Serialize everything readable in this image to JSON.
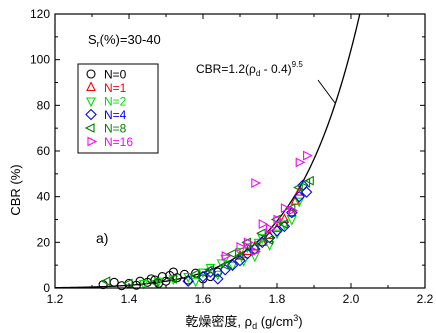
{
  "chart_data": {
    "type": "scatter",
    "title": "",
    "xlabel_main": "乾燥密度, ",
    "xlabel_symbol": "ρ",
    "xlabel_sub": "d",
    "xlabel_unit_open": " (g/cm",
    "xlabel_unit_sup": "3",
    "xlabel_unit_close": ")",
    "ylabel": "CBR (%)",
    "xlim": [
      1.2,
      2.2
    ],
    "ylim": [
      0,
      120
    ],
    "x_ticks": [
      "1.2",
      "1.4",
      "1.6",
      "1.8",
      "2.0",
      "2.2"
    ],
    "y_ticks": [
      "0",
      "20",
      "40",
      "60",
      "80",
      "100",
      "120"
    ],
    "x_tick_values": [
      1.2,
      1.4,
      1.6,
      1.8,
      2.0,
      2.2
    ],
    "y_tick_values": [
      0,
      20,
      40,
      60,
      80,
      100,
      120
    ],
    "grid": false,
    "legend_position": "upper-left",
    "condition_label": {
      "prefix": "S",
      "sub": "r",
      "rest": "(%)=30-40"
    },
    "panel_label": "a)",
    "fit_curve": {
      "a": 1.2,
      "b": 0.4,
      "n": 9.5,
      "label_prefix": "CBR=1.2(",
      "label_rho": "ρ",
      "label_sub": "d",
      "label_mid": " - 0.4)",
      "label_sup": "9.5"
    },
    "series": [
      {
        "name": "N=0",
        "marker": "circle",
        "color": "#000000",
        "points": [
          [
            1.33,
            1.5
          ],
          [
            1.36,
            2.5
          ],
          [
            1.38,
            1.0
          ],
          [
            1.4,
            2.0
          ],
          [
            1.42,
            1.2
          ],
          [
            1.43,
            3.0
          ],
          [
            1.45,
            2.5
          ],
          [
            1.46,
            4.0
          ],
          [
            1.47,
            3.5
          ],
          [
            1.48,
            2.0
          ],
          [
            1.49,
            5.0
          ],
          [
            1.5,
            3.0
          ],
          [
            1.51,
            5.5
          ],
          [
            1.52,
            7.0
          ],
          [
            1.53,
            4.5
          ],
          [
            1.55,
            6.0
          ],
          [
            1.56,
            3.5
          ],
          [
            1.58,
            6.5
          ],
          [
            1.6,
            4.0
          ],
          [
            1.62,
            5.0
          ],
          [
            1.64,
            7.0
          ]
        ]
      },
      {
        "name": "N=1",
        "marker": "triangle-up",
        "color": "#ff0000",
        "points": [
          [
            1.7,
            14
          ],
          [
            1.72,
            16
          ],
          [
            1.74,
            18
          ],
          [
            1.76,
            20
          ],
          [
            1.78,
            23
          ],
          [
            1.8,
            26
          ],
          [
            1.82,
            30
          ],
          [
            1.84,
            33
          ],
          [
            1.85,
            38
          ],
          [
            1.86,
            42
          ]
        ]
      },
      {
        "name": "N=2",
        "marker": "triangle-down",
        "color": "#00dd00",
        "points": [
          [
            1.44,
            2
          ],
          [
            1.48,
            3
          ],
          [
            1.52,
            4
          ],
          [
            1.56,
            5
          ],
          [
            1.58,
            3
          ],
          [
            1.6,
            7
          ],
          [
            1.62,
            9
          ],
          [
            1.64,
            6
          ],
          [
            1.65,
            11
          ],
          [
            1.66,
            13
          ],
          [
            1.68,
            10
          ],
          [
            1.7,
            16
          ],
          [
            1.71,
            12
          ],
          [
            1.72,
            18
          ],
          [
            1.74,
            14
          ],
          [
            1.75,
            20
          ],
          [
            1.76,
            22
          ],
          [
            1.78,
            19
          ],
          [
            1.8,
            24
          ],
          [
            1.82,
            28
          ],
          [
            1.84,
            30
          ],
          [
            1.86,
            38
          ]
        ]
      },
      {
        "name": "N=4",
        "marker": "diamond",
        "color": "#0000ff",
        "points": [
          [
            1.56,
            3
          ],
          [
            1.6,
            5
          ],
          [
            1.62,
            7
          ],
          [
            1.64,
            4
          ],
          [
            1.66,
            8
          ],
          [
            1.68,
            10
          ],
          [
            1.7,
            12
          ],
          [
            1.72,
            15
          ],
          [
            1.74,
            17
          ],
          [
            1.76,
            20
          ],
          [
            1.78,
            22
          ],
          [
            1.8,
            25
          ],
          [
            1.82,
            27
          ],
          [
            1.84,
            33
          ],
          [
            1.86,
            40
          ],
          [
            1.87,
            45
          ],
          [
            1.88,
            42
          ]
        ]
      },
      {
        "name": "N=8",
        "marker": "triangle-left",
        "color": "#008000",
        "points": [
          [
            1.34,
            3
          ],
          [
            1.4,
            2
          ],
          [
            1.47,
            2.5
          ],
          [
            1.52,
            4
          ],
          [
            1.58,
            6
          ],
          [
            1.62,
            8
          ],
          [
            1.66,
            10
          ],
          [
            1.68,
            15
          ],
          [
            1.7,
            14
          ],
          [
            1.72,
            20
          ],
          [
            1.74,
            18
          ],
          [
            1.76,
            24
          ],
          [
            1.78,
            21
          ],
          [
            1.8,
            30
          ],
          [
            1.82,
            28
          ],
          [
            1.84,
            35
          ],
          [
            1.86,
            44
          ],
          [
            1.88,
            46
          ],
          [
            1.89,
            47
          ]
        ]
      },
      {
        "name": "N=16",
        "marker": "triangle-right",
        "color": "#ff00ff",
        "points": [
          [
            1.66,
            14
          ],
          [
            1.7,
            18
          ],
          [
            1.72,
            20
          ],
          [
            1.74,
            16
          ],
          [
            1.76,
            28
          ],
          [
            1.78,
            26
          ],
          [
            1.8,
            30
          ],
          [
            1.82,
            35
          ],
          [
            1.84,
            34
          ],
          [
            1.86,
            55
          ],
          [
            1.88,
            58
          ],
          [
            1.74,
            46
          ]
        ]
      }
    ]
  }
}
